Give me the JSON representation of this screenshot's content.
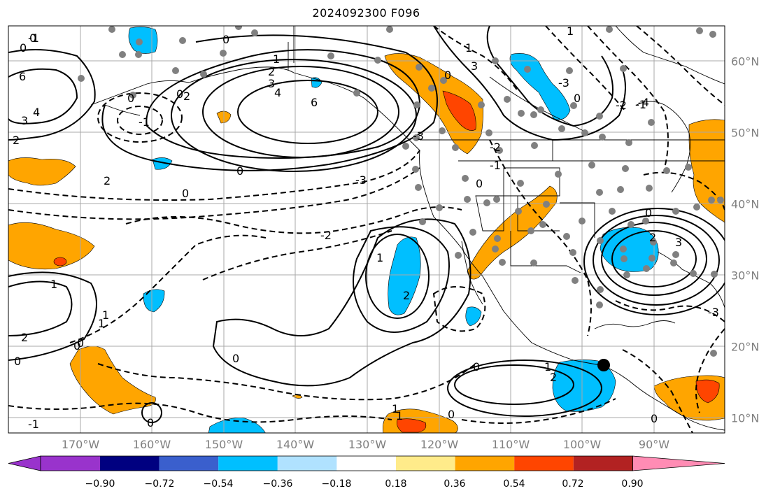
{
  "title": "2024092300 F096",
  "lon_labels": [
    "170°W",
    "160°W",
    "150°W",
    "140°W",
    "130°W",
    "120°W",
    "110°W",
    "100°W",
    "90°W"
  ],
  "lat_labels": [
    "60°N",
    "50°N",
    "40°N",
    "30°N",
    "20°N",
    "10°N"
  ],
  "colorbar": {
    "colors": [
      "#9933cc",
      "#000080",
      "#3a5fcd",
      "#00bfff",
      "#b0e2ff",
      "#ffffff",
      "#ffeb8a",
      "#ffa500",
      "#ff4500",
      "#b22222",
      "#ff8cb4"
    ],
    "ticks": [
      "−0.90",
      "−0.72",
      "−0.54",
      "−0.36",
      "−0.18",
      "0.18",
      "0.36",
      "0.54",
      "0.72",
      "0.90"
    ]
  },
  "contour_labels": [
    "-1",
    "0",
    "0",
    "1",
    "1",
    "2",
    "3",
    "4",
    "6",
    "-1",
    "0",
    "6",
    "4",
    "3",
    "2",
    "0",
    "2",
    "0",
    "-3",
    "-2",
    "2",
    "1",
    "1",
    "2",
    "1",
    "0",
    "0",
    "0",
    "0",
    "1",
    "2",
    "0",
    "1",
    "1",
    "-1",
    "0",
    "0",
    "0",
    "-3",
    "-2",
    "-1",
    "2",
    "3",
    "-4",
    "3",
    "2",
    "0",
    "-3",
    "0",
    "-2",
    "-1",
    "0",
    "0",
    "-3",
    "0",
    "1",
    "1",
    "0"
  ]
}
